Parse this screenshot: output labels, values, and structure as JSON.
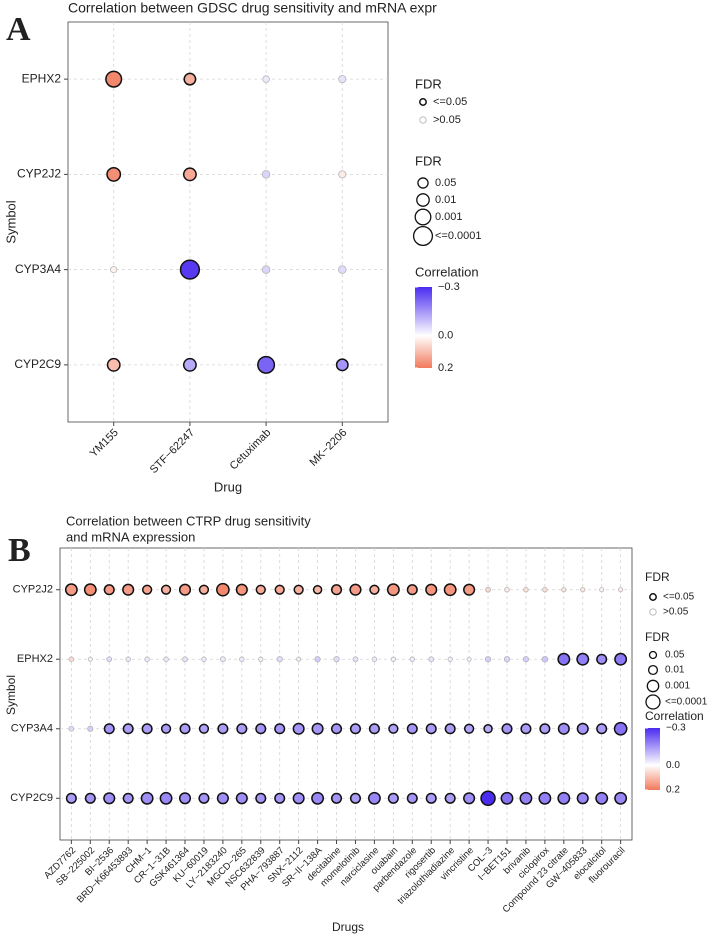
{
  "chart_data": [
    {
      "type": "bubble",
      "panel_label": "A",
      "title": "Correlation between GDSC drug sensitivity and mRNA expr",
      "x_label": "Drug",
      "y_label": "Symbol",
      "categories": [
        "YM155",
        "STF−62247",
        "Cetuximab",
        "MK−2206"
      ],
      "series": [
        {
          "name": "EPHX2",
          "values": [
            0.18,
            0.12,
            -0.03,
            -0.04
          ],
          "fdr": [
            0.001,
            0.02,
            0.6,
            0.4
          ]
        },
        {
          "name": "CYP2J2",
          "values": [
            0.17,
            0.13,
            -0.06,
            0.03
          ],
          "fdr": [
            0.005,
            0.01,
            0.3,
            0.4
          ]
        },
        {
          "name": "CYP3A4",
          "values": [
            0.02,
            -0.28,
            -0.06,
            -0.05
          ],
          "fdr": [
            0.8,
            0.0001,
            0.3,
            0.3
          ]
        },
        {
          "name": "CYP2C9",
          "values": [
            0.1,
            -0.12,
            -0.22,
            -0.15
          ],
          "fdr": [
            0.01,
            0.01,
            0.0005,
            0.02
          ]
        }
      ],
      "grid": true,
      "significance_legend": {
        "title": "FDR",
        "entries": [
          {
            "value": 0.05,
            "label": "<=0.05"
          },
          {
            "value": 0.05,
            "label": ">0.05"
          }
        ]
      },
      "size_legend": {
        "title": "FDR",
        "values": [
          0.05,
          0.01,
          0.001,
          {
            "value": 0.0001,
            "label": "<=0.0001"
          }
        ]
      },
      "color_legend": {
        "title": "Correlation",
        "clim": [
          -0.3,
          0.2
        ],
        "ticks": [
          {
            "value": -0.3,
            "label": "−0.3"
          },
          {
            "value": 0,
            "label": "0.0"
          },
          0.2
        ]
      },
      "colors": {
        "low": "#4a2bf0",
        "mid": "#ffffff",
        "high": "#f27a5c",
        "significant_border": "#111111",
        "other_border": "#b5b5b5"
      }
    },
    {
      "type": "bubble",
      "panel_label": "B",
      "title": [
        "Correlation between CTRP drug sensitivity",
        "and mRNA expression"
      ],
      "x_label": "Drugs",
      "y_label": "Symbol",
      "categories": [
        "AZD7762",
        "SB−225002",
        "BI−2536",
        "BRD−K66453893",
        "CHM−1",
        "CR−1−31B",
        "GSK461364",
        "KU−60019",
        "LY−2183240",
        "MGCD−265",
        "NSC632839",
        "PHA−793887",
        "SNX−2112",
        "SR−II−138A",
        "decitabine",
        "momelotinib",
        "narciclasine",
        "ouabain",
        "parbendazole",
        "rigosertib",
        "triazolothiadiazine",
        "vincristine",
        "COL−3",
        "I−BET151",
        "brivanib",
        "ciclopirox",
        "Compound 23 citrate",
        "GW−405833",
        "elocalcitol",
        "fluorouracil"
      ],
      "series": [
        {
          "name": "CYP2J2",
          "values": [
            0.15,
            0.17,
            0.15,
            0.15,
            0.14,
            0.12,
            0.15,
            0.12,
            0.18,
            0.16,
            0.13,
            0.13,
            0.12,
            0.11,
            0.14,
            0.15,
            0.12,
            0.16,
            0.15,
            0.16,
            0.16,
            0.15,
            0.06,
            0.03,
            0.05,
            0.05,
            0.04,
            0.04,
            0.02,
            0.03
          ],
          "fdr": [
            0.001,
            0.001,
            0.005,
            0.002,
            0.01,
            0.01,
            0.002,
            0.01,
            0.0005,
            0.002,
            0.01,
            0.01,
            0.01,
            0.02,
            0.005,
            0.002,
            0.01,
            0.001,
            0.005,
            0.002,
            0.001,
            0.002,
            0.3,
            0.4,
            0.4,
            0.4,
            0.5,
            0.5,
            0.6,
            0.5
          ]
        },
        {
          "name": "EPHX2",
          "values": [
            0.05,
            0.02,
            -0.05,
            -0.03,
            -0.03,
            -0.03,
            -0.04,
            -0.03,
            -0.03,
            -0.03,
            -0.02,
            -0.05,
            -0.02,
            -0.07,
            -0.05,
            -0.04,
            -0.03,
            -0.02,
            -0.03,
            -0.04,
            -0.02,
            -0.02,
            -0.07,
            -0.06,
            -0.07,
            -0.08,
            -0.2,
            -0.18,
            -0.16,
            -0.19
          ],
          "fdr": [
            0.4,
            0.6,
            0.3,
            0.4,
            0.4,
            0.4,
            0.3,
            0.4,
            0.3,
            0.4,
            0.5,
            0.2,
            0.6,
            0.2,
            0.2,
            0.3,
            0.4,
            0.5,
            0.4,
            0.3,
            0.5,
            0.6,
            0.2,
            0.2,
            0.2,
            0.15,
            0.001,
            0.001,
            0.005,
            0.001
          ]
        },
        {
          "name": "CYP3A4",
          "values": [
            -0.05,
            -0.07,
            -0.15,
            -0.14,
            -0.14,
            -0.14,
            -0.14,
            -0.13,
            -0.14,
            -0.14,
            -0.15,
            -0.15,
            -0.15,
            -0.15,
            -0.15,
            -0.14,
            -0.14,
            -0.13,
            -0.15,
            -0.14,
            -0.14,
            -0.13,
            -0.12,
            -0.15,
            -0.14,
            -0.14,
            -0.16,
            -0.15,
            -0.14,
            -0.2
          ],
          "fdr": [
            0.3,
            0.2,
            0.005,
            0.005,
            0.005,
            0.01,
            0.005,
            0.01,
            0.005,
            0.005,
            0.005,
            0.005,
            0.002,
            0.002,
            0.005,
            0.005,
            0.005,
            0.01,
            0.005,
            0.005,
            0.005,
            0.01,
            0.02,
            0.005,
            0.005,
            0.005,
            0.002,
            0.002,
            0.005,
            0.0005
          ]
        },
        {
          "name": "CYP2C9",
          "values": [
            -0.14,
            -0.15,
            -0.16,
            -0.15,
            -0.16,
            -0.17,
            -0.16,
            -0.15,
            -0.16,
            -0.16,
            -0.15,
            -0.15,
            -0.16,
            -0.17,
            -0.15,
            -0.14,
            -0.17,
            -0.14,
            -0.15,
            -0.14,
            -0.14,
            -0.16,
            -0.3,
            -0.2,
            -0.18,
            -0.18,
            -0.18,
            -0.17,
            -0.18,
            -0.17
          ],
          "fdr": [
            0.005,
            0.005,
            0.002,
            0.005,
            0.001,
            0.001,
            0.002,
            0.005,
            0.002,
            0.002,
            0.005,
            0.005,
            0.002,
            0.001,
            0.005,
            0.005,
            0.001,
            0.005,
            0.005,
            0.005,
            0.005,
            0.002,
            0.0001,
            0.001,
            0.001,
            0.001,
            0.001,
            0.002,
            0.001,
            0.001
          ]
        }
      ],
      "grid": true,
      "significance_legend": {
        "title": "FDR",
        "entries": [
          {
            "value": 0.05,
            "label": "<=0.05"
          },
          {
            "value": 0.05,
            "label": ">0.05"
          }
        ]
      },
      "size_legend": {
        "title": "FDR",
        "values": [
          0.05,
          0.01,
          0.001,
          {
            "value": 0.0001,
            "label": "<=0.0001"
          }
        ]
      },
      "color_legend": {
        "title": "Correlation",
        "clim": [
          -0.3,
          0.2
        ],
        "ticks": [
          {
            "value": -0.3,
            "label": "−0.3"
          },
          {
            "value": 0,
            "label": "0.0"
          },
          0.2
        ]
      },
      "colors": {
        "low": "#4a2bf0",
        "mid": "#ffffff",
        "high": "#f27a5c",
        "significant_border": "#111111",
        "other_border": "#b5b5b5"
      }
    }
  ]
}
